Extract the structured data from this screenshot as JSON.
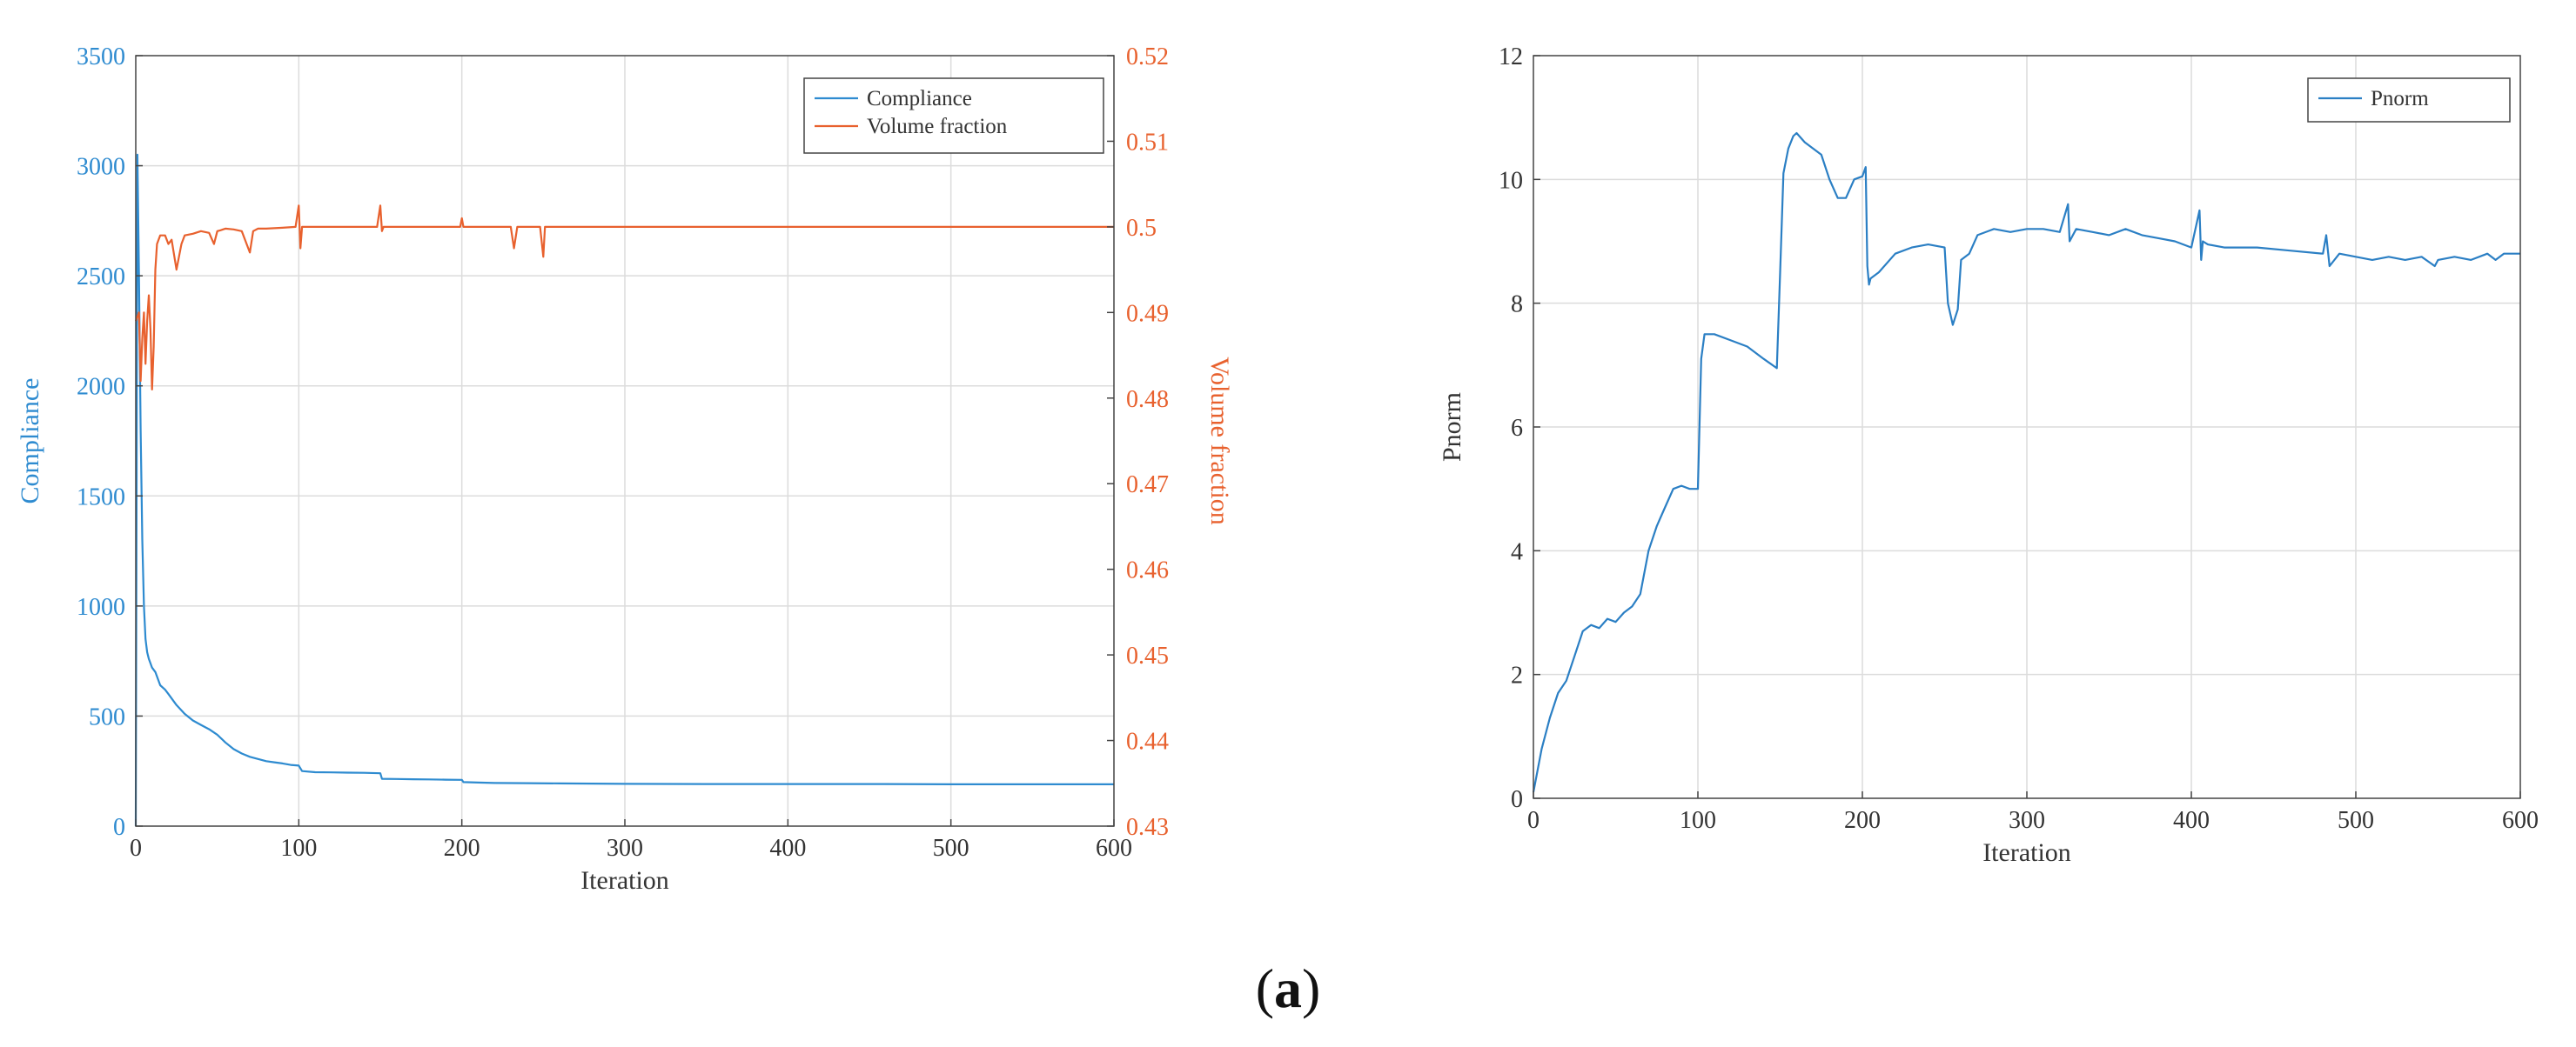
{
  "figure_label": {
    "prefix": "(",
    "letter": "a",
    "suffix": ")"
  },
  "colors": {
    "compliance": "#2e8bd0",
    "volume_fraction": "#e8612e",
    "pnorm": "#2b7fc4",
    "axis": "#444444",
    "grid": "#dcdcdc",
    "text": "#333333"
  },
  "chart_data": [
    {
      "type": "line",
      "title": "",
      "xlabel": "Iteration",
      "ylabel": "Compliance",
      "y2label": "Volume fraction",
      "xlim": [
        0,
        600
      ],
      "ylim": [
        0,
        3500
      ],
      "y2lim": [
        0.43,
        0.52
      ],
      "xticks": [
        0,
        100,
        200,
        300,
        400,
        500,
        600
      ],
      "yticks": [
        0,
        500,
        1000,
        1500,
        2000,
        2500,
        3000,
        3500
      ],
      "y2ticks": [
        0.43,
        0.44,
        0.45,
        0.46,
        0.47,
        0.48,
        0.49,
        0.5,
        0.51,
        0.52
      ],
      "grid": true,
      "legend_position": "top-right",
      "series": [
        {
          "name": "Compliance",
          "axis": "left",
          "x": [
            0,
            1,
            2,
            3,
            4,
            5,
            6,
            7,
            8,
            10,
            12,
            15,
            18,
            20,
            25,
            30,
            35,
            40,
            45,
            50,
            55,
            60,
            65,
            70,
            75,
            80,
            85,
            90,
            95,
            100,
            102,
            110,
            120,
            130,
            140,
            150,
            151,
            160,
            170,
            180,
            190,
            200,
            201,
            210,
            220,
            240,
            260,
            280,
            300,
            350,
            400,
            450,
            500,
            550,
            600
          ],
          "y": [
            0,
            3050,
            2500,
            1800,
            1300,
            1000,
            850,
            790,
            760,
            720,
            700,
            640,
            620,
            600,
            550,
            510,
            480,
            460,
            440,
            415,
            380,
            350,
            330,
            315,
            305,
            295,
            290,
            285,
            278,
            275,
            250,
            245,
            244,
            243,
            242,
            240,
            215,
            214,
            213,
            212,
            211,
            210,
            200,
            198,
            196,
            195,
            194,
            193,
            192,
            191,
            191,
            191,
            190,
            190,
            190
          ]
        },
        {
          "name": "Volume fraction",
          "axis": "right",
          "x": [
            0,
            2,
            3,
            4,
            5,
            6,
            7,
            8,
            9,
            10,
            11,
            12,
            13,
            14,
            15,
            18,
            20,
            22,
            25,
            28,
            30,
            35,
            40,
            45,
            48,
            50,
            52,
            55,
            60,
            65,
            70,
            72,
            75,
            80,
            90,
            98,
            100,
            101,
            102,
            104,
            110,
            120,
            130,
            140,
            148,
            150,
            151,
            152,
            154,
            160,
            180,
            199,
            200,
            201,
            203,
            210,
            230,
            232,
            234,
            236,
            240,
            248,
            250,
            251,
            252,
            255,
            270,
            300,
            400,
            500,
            600
          ],
          "y": [
            0.489,
            0.49,
            0.482,
            0.487,
            0.49,
            0.484,
            0.489,
            0.492,
            0.488,
            0.481,
            0.486,
            0.495,
            0.498,
            0.4985,
            0.499,
            0.499,
            0.498,
            0.4985,
            0.495,
            0.498,
            0.499,
            0.4992,
            0.4995,
            0.4993,
            0.498,
            0.4995,
            0.4996,
            0.4998,
            0.4997,
            0.4995,
            0.497,
            0.4995,
            0.4998,
            0.4998,
            0.4999,
            0.5,
            0.5025,
            0.4975,
            0.5,
            0.5,
            0.5,
            0.5,
            0.5,
            0.5,
            0.5,
            0.5025,
            0.4995,
            0.5,
            0.5,
            0.5,
            0.5,
            0.5,
            0.501,
            0.5,
            0.5,
            0.5,
            0.5,
            0.4975,
            0.5,
            0.5,
            0.5,
            0.5,
            0.4965,
            0.5,
            0.5,
            0.5,
            0.5,
            0.5,
            0.5,
            0.5,
            0.5
          ]
        }
      ]
    },
    {
      "type": "line",
      "title": "",
      "xlabel": "Iteration",
      "ylabel": "Pnorm",
      "xlim": [
        0,
        600
      ],
      "ylim": [
        0,
        12
      ],
      "xticks": [
        0,
        100,
        200,
        300,
        400,
        500,
        600
      ],
      "yticks": [
        0,
        2,
        4,
        6,
        8,
        10,
        12
      ],
      "grid": true,
      "legend_position": "top-right",
      "series": [
        {
          "name": "Pnorm",
          "x": [
            0,
            5,
            10,
            15,
            20,
            25,
            30,
            35,
            40,
            45,
            50,
            55,
            60,
            65,
            70,
            75,
            80,
            85,
            90,
            95,
            100,
            102,
            104,
            110,
            120,
            130,
            140,
            148,
            150,
            152,
            155,
            158,
            160,
            165,
            170,
            175,
            180,
            185,
            190,
            195,
            200,
            202,
            203,
            204,
            205,
            210,
            220,
            230,
            240,
            250,
            252,
            255,
            258,
            260,
            265,
            270,
            280,
            290,
            300,
            310,
            320,
            325,
            326,
            330,
            340,
            350,
            360,
            370,
            380,
            390,
            400,
            405,
            406,
            407,
            410,
            420,
            440,
            460,
            480,
            482,
            484,
            490,
            500,
            510,
            520,
            530,
            540,
            548,
            550,
            560,
            570,
            580,
            585,
            590,
            600
          ],
          "y": [
            0.1,
            0.8,
            1.3,
            1.7,
            1.9,
            2.3,
            2.7,
            2.8,
            2.75,
            2.9,
            2.85,
            3.0,
            3.1,
            3.3,
            4.0,
            4.4,
            4.7,
            5.0,
            5.05,
            5.0,
            5.0,
            7.1,
            7.5,
            7.5,
            7.4,
            7.3,
            7.1,
            6.95,
            8.5,
            10.1,
            10.5,
            10.7,
            10.75,
            10.6,
            10.5,
            10.4,
            10.0,
            9.7,
            9.7,
            10.0,
            10.05,
            10.2,
            8.6,
            8.3,
            8.4,
            8.5,
            8.8,
            8.9,
            8.95,
            8.9,
            8.0,
            7.65,
            7.9,
            8.7,
            8.8,
            9.1,
            9.2,
            9.15,
            9.2,
            9.2,
            9.15,
            9.6,
            9.0,
            9.2,
            9.15,
            9.1,
            9.2,
            9.1,
            9.05,
            9.0,
            8.9,
            9.5,
            8.7,
            9.0,
            8.95,
            8.9,
            8.9,
            8.85,
            8.8,
            9.1,
            8.6,
            8.8,
            8.75,
            8.7,
            8.75,
            8.7,
            8.75,
            8.6,
            8.7,
            8.75,
            8.7,
            8.8,
            8.7,
            8.8,
            8.8
          ]
        }
      ]
    }
  ]
}
